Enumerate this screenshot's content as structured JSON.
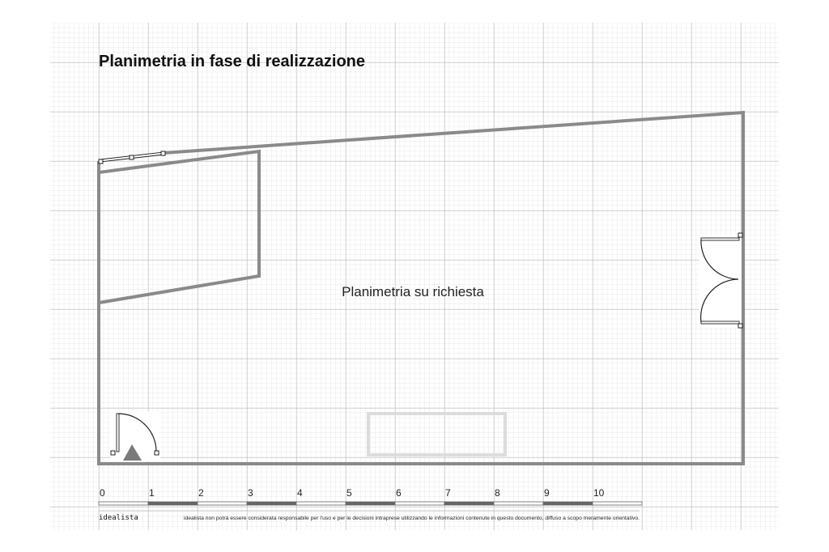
{
  "title": "Planimetria in fase di realizzazione",
  "center_label": "Planimetria su richiesta",
  "scale": {
    "ticks": [
      "0",
      "1",
      "2",
      "3",
      "4",
      "5",
      "6",
      "7",
      "8",
      "9",
      "10"
    ]
  },
  "footer": {
    "brand": "idealista",
    "disclaimer": "idealista non potrà essere considerata responsabile per l'uso e per le decisioni intraprese utilizzando le informazioni contenute in questo documento, diffuso a scopo meramente orientativo."
  },
  "colors": {
    "wall": "#8a8a8a",
    "grid_major": "#b5b5b5",
    "grid_minor": "#e2e2e2",
    "scale_dark": "#666666"
  }
}
